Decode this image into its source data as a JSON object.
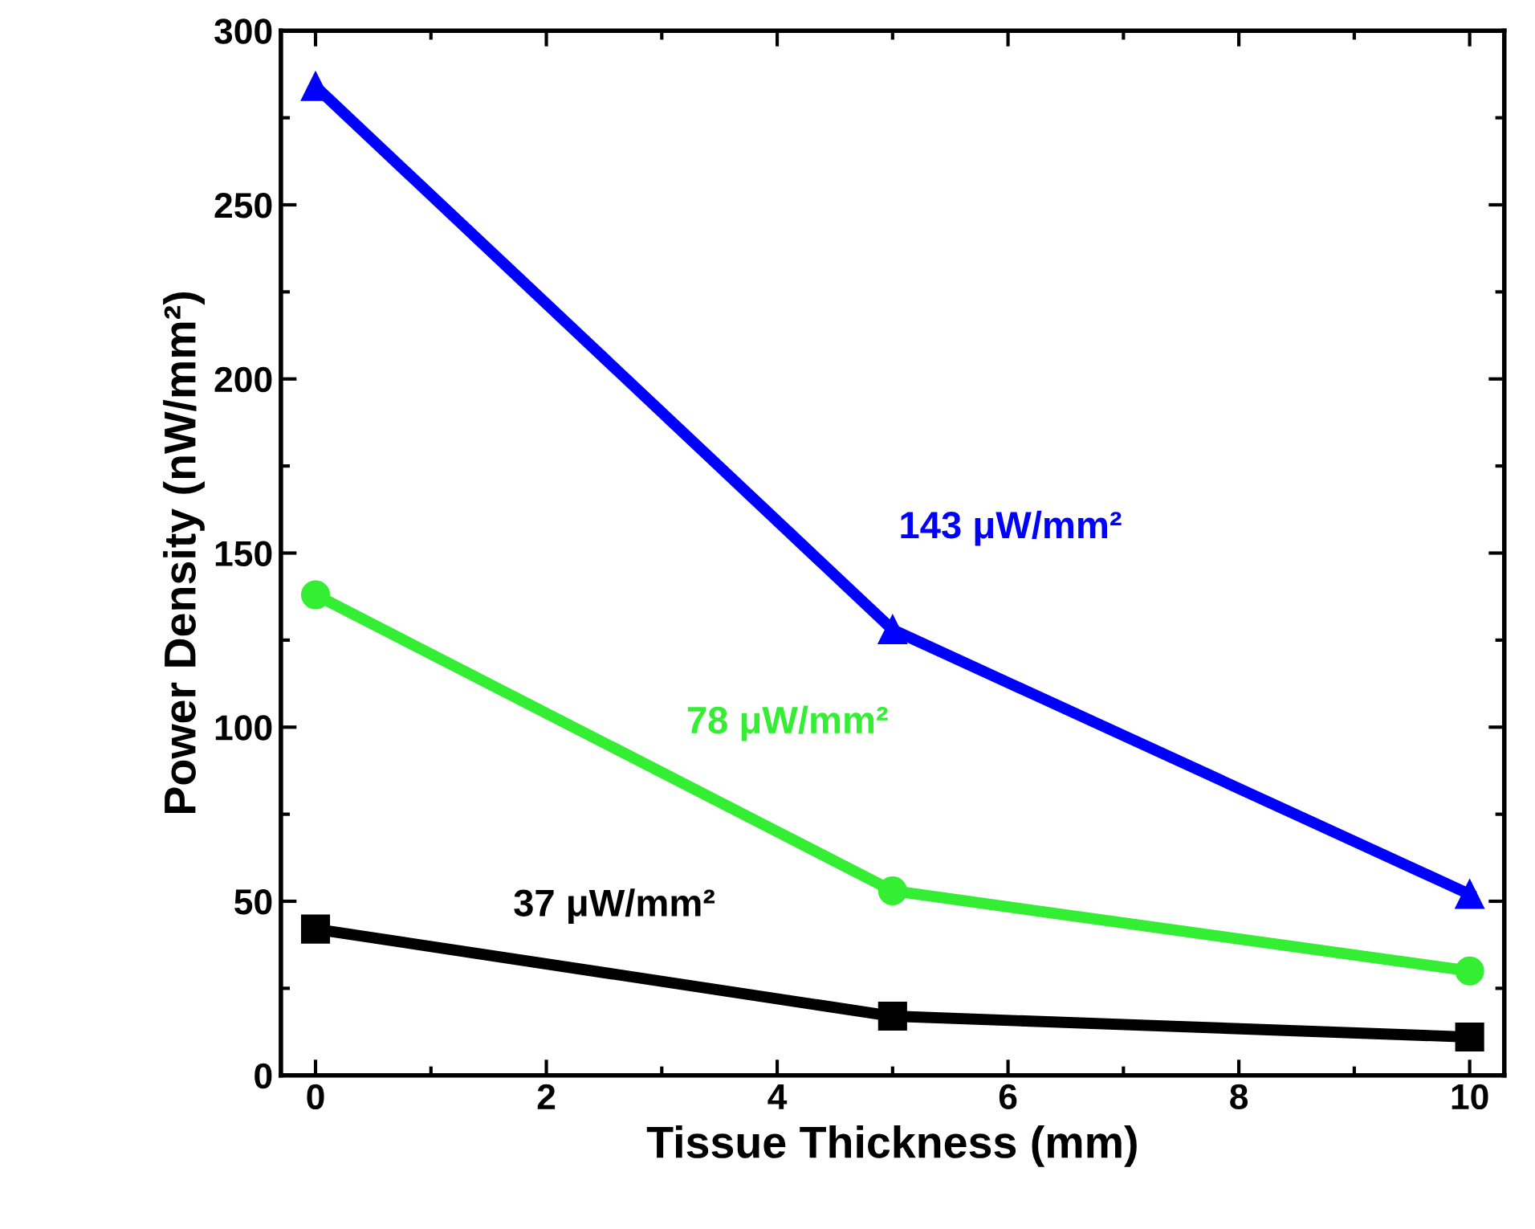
{
  "chart_data": {
    "type": "line",
    "xlabel": "Tissue Thickness (mm)",
    "ylabel": "Power Density (nW/mm²)",
    "x": [
      0,
      5,
      10
    ],
    "series": [
      {
        "name": "143 μW/mm²",
        "color": "#0000ff",
        "marker": "triangle",
        "values": [
          284,
          128,
          52
        ]
      },
      {
        "name": "78 μW/mm²",
        "color": "#33ee33",
        "marker": "circle",
        "values": [
          138,
          53,
          30
        ]
      },
      {
        "name": "37 μW/mm²",
        "color": "#000000",
        "marker": "square",
        "values": [
          42,
          17,
          11
        ]
      }
    ],
    "xlim": [
      -0.3,
      10.3
    ],
    "xticks": [
      0,
      2,
      4,
      6,
      8,
      10
    ],
    "ylim": [
      0,
      300
    ],
    "yticks": [
      0,
      50,
      100,
      150,
      200,
      250,
      300
    ],
    "grid": false,
    "legend": false,
    "line_style": "solid"
  }
}
